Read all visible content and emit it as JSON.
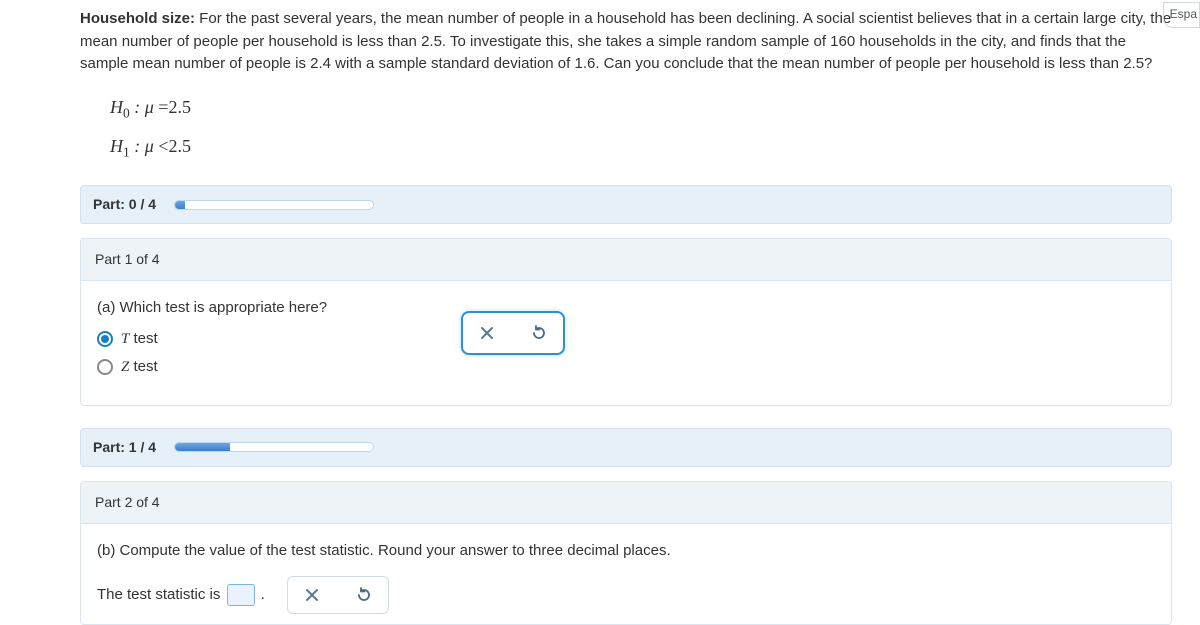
{
  "intro": {
    "bold_lead": "Household size:",
    "text_a": " For the past several years, the mean number of people in a household has been declining. A social scientist believes that in a certain large city, the mean number of people per household is less than ",
    "num1": "2.5",
    "text_b": ". To investigate this, she takes a simple random sample of ",
    "num2": "160",
    "text_c": " households in the city, and finds that the sample mean number of people is ",
    "num3": "2.4",
    "text_d": " with a sample standard deviation of ",
    "num4": "1.6",
    "text_e": ". Can you conclude that the mean number of people per household is less than ",
    "num5": "2.5",
    "text_f": "?"
  },
  "hypotheses": {
    "h0_left": "H",
    "h0_sub": "0",
    "h0_mid": " : μ ",
    "h0_op": "=",
    "h0_val": "2.5",
    "h1_left": "H",
    "h1_sub": "1",
    "h1_mid": " : μ ",
    "h1_op": "<",
    "h1_val": "2.5"
  },
  "parts": {
    "p0_label": "Part: 0 / 4",
    "p0_progress_pct": 5,
    "p1_label": "Part: 1 / 4",
    "p1_progress_pct": 28
  },
  "card1": {
    "header": "Part 1 of 4",
    "question": "(a) Which test is appropriate here?",
    "opt1": " test",
    "opt1_letter": "T",
    "opt2": " test",
    "opt2_letter": "Z"
  },
  "card2": {
    "header": "Part 2 of 4",
    "question": "(b) Compute the value of the test statistic. Round your answer to three decimal places.",
    "answer_lead": "The test statistic is ",
    "answer_trail": "."
  },
  "chip": {
    "label": "Espa"
  },
  "colors": {
    "header_bg": "#e6f0f8",
    "card_border": "#dbe5ee",
    "accent": "#2d8fd6",
    "icon_x": "#5a7a94",
    "icon_reset": "#4a6a84"
  }
}
